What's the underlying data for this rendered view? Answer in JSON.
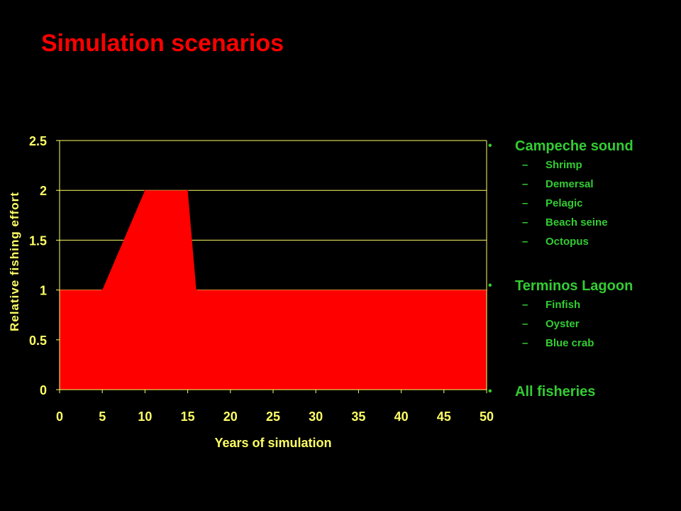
{
  "slide": {
    "title": "Simulation scenarios"
  },
  "chart_data": {
    "type": "area",
    "title": "",
    "xlabel": "Years of simulation",
    "ylabel": "Relative fishing effort",
    "x": [
      0,
      5,
      10,
      15,
      16,
      50
    ],
    "values": [
      1,
      1,
      2,
      2,
      1,
      1
    ],
    "xlim": [
      0,
      50
    ],
    "ylim": [
      0,
      2.5
    ],
    "xticks": [
      "0",
      "5",
      "10",
      "15",
      "20",
      "25",
      "30",
      "35",
      "40",
      "45",
      "50"
    ],
    "yticks": [
      "0",
      "0.5",
      "1",
      "1.5",
      "2",
      "2.5"
    ],
    "grid": "horizontal",
    "fill_color": "#ff0000",
    "axis_color": "#ffff66",
    "grid_color": "#ffff66"
  },
  "scenarios": [
    {
      "label": "Campeche sound",
      "items": [
        "Shrimp",
        "Demersal",
        "Pelagic",
        "Beach seine",
        "Octopus"
      ]
    },
    {
      "label": "Terminos Lagoon",
      "items": [
        "Finfish",
        "Oyster",
        "Blue crab"
      ]
    },
    {
      "label": "All fisheries",
      "items": []
    }
  ],
  "colors": {
    "title": "#ff0000",
    "text": "#33cc33",
    "background": "#000000"
  }
}
